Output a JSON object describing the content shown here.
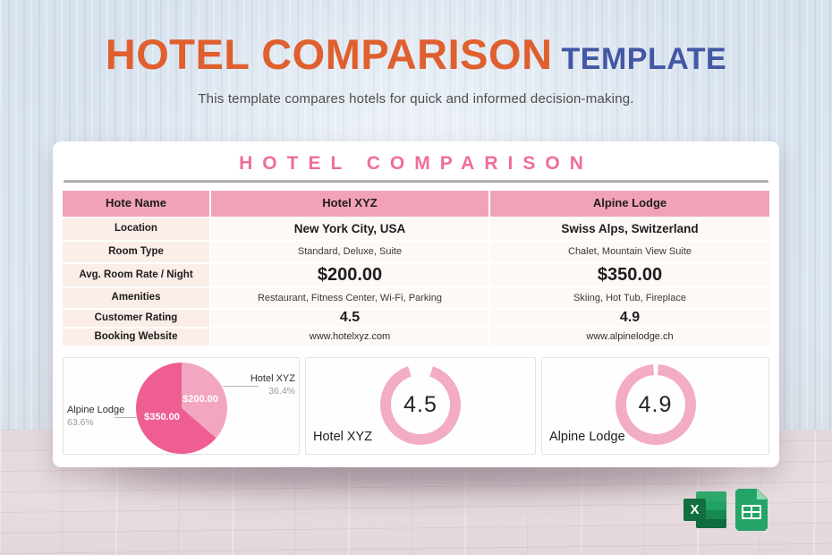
{
  "page": {
    "title_main": "HOTEL COMPARISON",
    "title_suffix": "TEMPLATE",
    "subtitle": "This template compares hotels for quick and informed decision-making.",
    "accent_orange": "#DF5F2E",
    "accent_blue": "#4457A5",
    "accent_pink": "#EF6D9D"
  },
  "card": {
    "heading": "HOTEL COMPARISON"
  },
  "table": {
    "columns": [
      "Hote Name",
      "Hotel XYZ",
      "Alpine Lodge"
    ],
    "rows": [
      {
        "label": "Location",
        "hotel_xyz": "New York City, USA",
        "alpine_lodge": "Swiss Alps, Switzerland"
      },
      {
        "label": "Room Type",
        "hotel_xyz": "Standard, Deluxe, Suite",
        "alpine_lodge": "Chalet, Mountain View Suite"
      },
      {
        "label": "Avg. Room Rate / Night",
        "hotel_xyz": "$200.00",
        "alpine_lodge": "$350.00"
      },
      {
        "label": "Amenities",
        "hotel_xyz": "Restaurant, Fitness Center, Wi-Fi, Parking",
        "alpine_lodge": "Skiing, Hot Tub, Fireplace"
      },
      {
        "label": "Customer Rating",
        "hotel_xyz": "4.5",
        "alpine_lodge": "4.9"
      },
      {
        "label": "Booking Website",
        "hotel_xyz": "www.hotelxyz.com",
        "alpine_lodge": "www.alpinelodge.ch"
      }
    ],
    "header_bg": "#F2A2B7",
    "label_col_bg": "#FBEDE8",
    "data_cell_bg": "#FEF8F6"
  },
  "chart_data": [
    {
      "type": "pie",
      "labels": [
        "Hotel XYZ",
        "Alpine Lodge"
      ],
      "values": [
        200,
        350
      ],
      "percent_labels": [
        "36.4%",
        "63.6%"
      ],
      "value_labels": [
        "$200.00",
        "$350.00"
      ],
      "colors": [
        "#F3A6C1",
        "#EE5E92"
      ],
      "legend_position": "callout"
    },
    {
      "type": "donut",
      "label": "Hotel XYZ",
      "value": 4.5,
      "max": 5,
      "center_text": "4.5",
      "color": "#F2ACC4"
    },
    {
      "type": "donut",
      "label": "Alpine Lodge",
      "value": 4.9,
      "max": 5,
      "center_text": "4.9",
      "color": "#F2ACC4"
    }
  ],
  "footer_icons": {
    "excel_letter": "X"
  }
}
